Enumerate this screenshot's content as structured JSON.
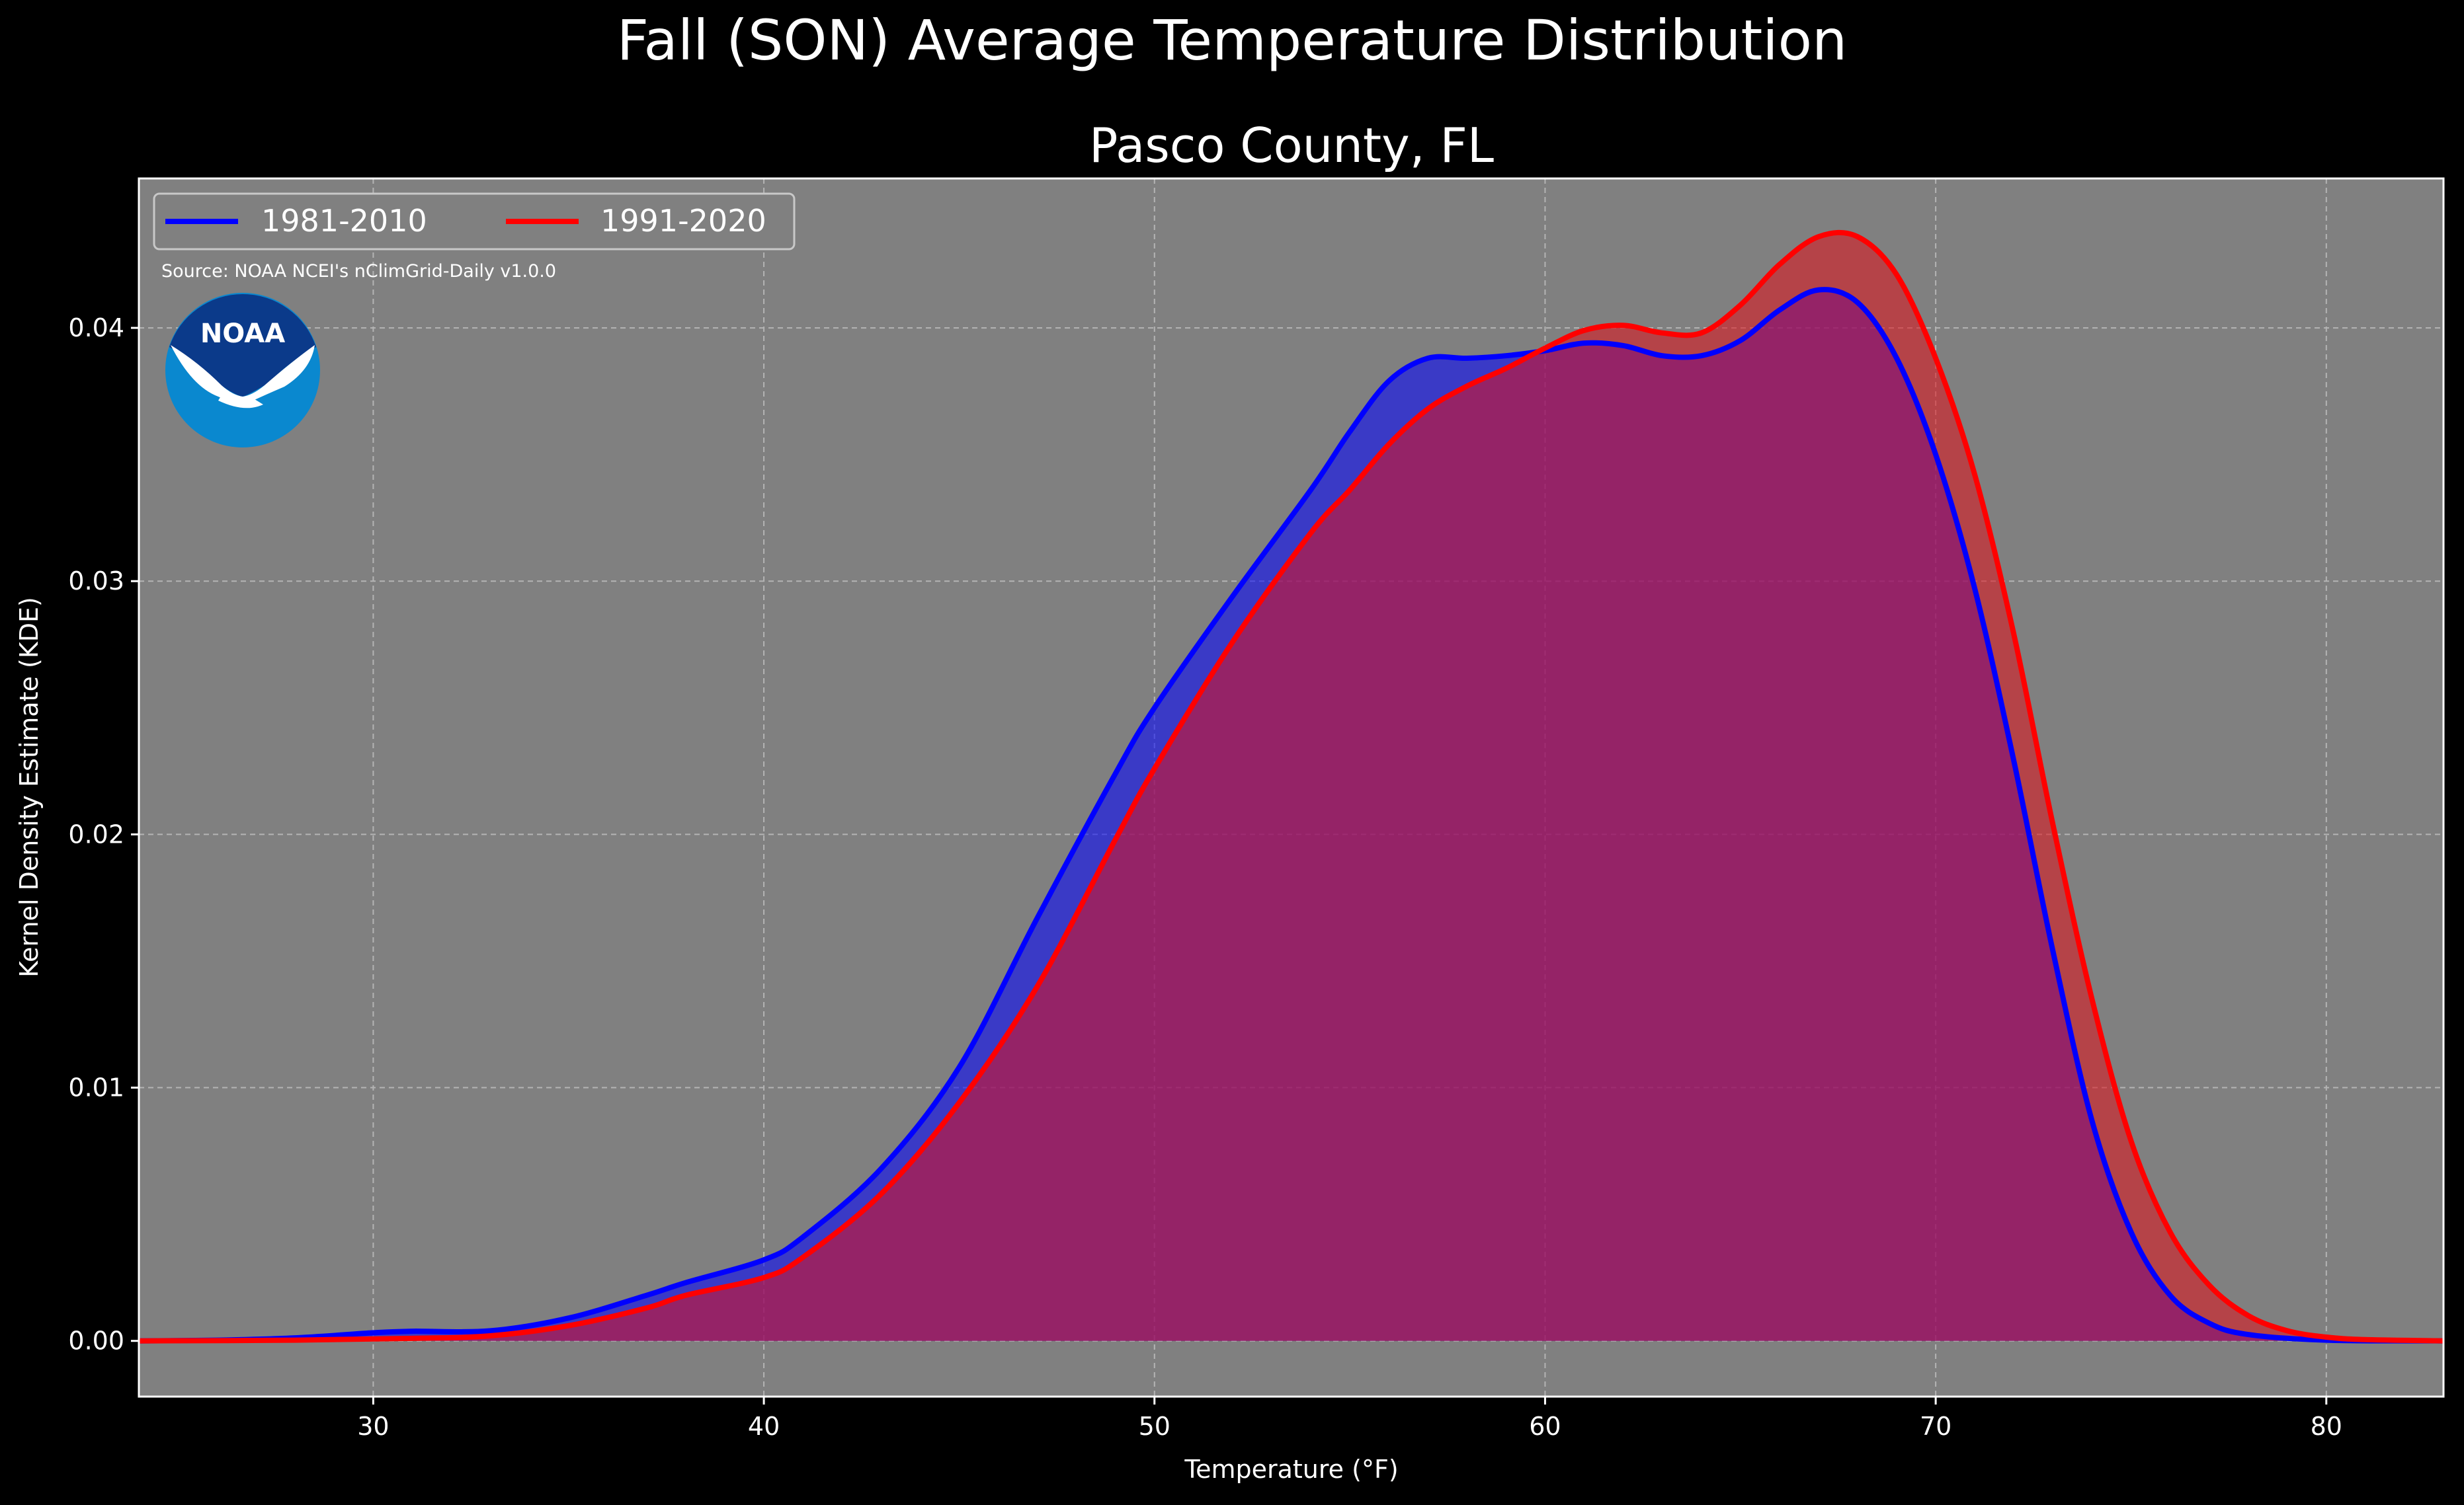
{
  "figure": {
    "suptitle": "Fall (SON) Average Temperature Distribution",
    "source_note": "Source: NOAA NCEI's nClimGrid-Daily v1.0.0",
    "logo_text": "NOAA",
    "colors": {
      "background": "#000000",
      "plot_background": "#808080",
      "series_1981": "#0000ff",
      "series_1991": "#ff0000",
      "logo_dark": "#0b3a8a",
      "logo_light": "#0a88cf"
    }
  },
  "chart_data": {
    "type": "area",
    "title": "Pasco County, FL",
    "xlabel": "Temperature ($^\\circ$F)",
    "xlabel_display": "Temperature (°F)",
    "ylabel": "Kernel Density Estimate (KDE)",
    "xlim": [
      24,
      83
    ],
    "ylim": [
      -0.0022,
      0.0459
    ],
    "xticks": [
      30,
      40,
      50,
      60,
      70,
      80
    ],
    "yticks": [
      0.0,
      0.01,
      0.02,
      0.03,
      0.04
    ],
    "ytick_labels": [
      "0.00",
      "0.01",
      "0.02",
      "0.03",
      "0.04"
    ],
    "grid": true,
    "legend_position": "upper-left",
    "series": [
      {
        "name": "1981-2010",
        "color": "#0000ff",
        "x": [
          24,
          26,
          28,
          30,
          31,
          33,
          35,
          37,
          38,
          40,
          41,
          43,
          45,
          47,
          49,
          50,
          52,
          54,
          55,
          56,
          57,
          58,
          59,
          60,
          61,
          62,
          63,
          64,
          65,
          66,
          67,
          68,
          69,
          70,
          71,
          72,
          73,
          74,
          75,
          76,
          77,
          78,
          80,
          83
        ],
        "y": [
          0.0,
          3e-05,
          0.00012,
          0.00032,
          0.00038,
          0.0004,
          0.0009,
          0.0018,
          0.0023,
          0.0032,
          0.0041,
          0.0068,
          0.0108,
          0.0167,
          0.0224,
          0.025,
          0.0294,
          0.0336,
          0.0359,
          0.0379,
          0.0388,
          0.0388,
          0.0389,
          0.0391,
          0.0394,
          0.0393,
          0.0389,
          0.0389,
          0.0395,
          0.0407,
          0.0415,
          0.041,
          0.0388,
          0.035,
          0.0297,
          0.0229,
          0.0154,
          0.0087,
          0.0043,
          0.0018,
          0.0007,
          0.00025,
          3e-05,
          0.0
        ]
      },
      {
        "name": "1991-2020",
        "color": "#ff0000",
        "x": [
          24,
          28,
          31,
          33,
          35,
          37,
          38,
          40,
          41,
          43,
          45,
          47,
          49,
          50,
          52,
          54,
          55,
          56,
          57,
          58,
          59,
          60,
          61,
          62,
          63,
          64,
          65,
          66,
          67,
          68,
          69,
          70,
          71,
          72,
          73,
          74,
          75,
          76,
          77,
          78,
          79,
          80,
          81,
          83
        ],
        "y": [
          0.0,
          3e-05,
          0.0001,
          0.0002,
          0.0006,
          0.0013,
          0.0018,
          0.0025,
          0.0033,
          0.0058,
          0.0094,
          0.014,
          0.0198,
          0.0226,
          0.0276,
          0.0319,
          0.0336,
          0.0354,
          0.0368,
          0.0377,
          0.0384,
          0.0392,
          0.0399,
          0.0401,
          0.0398,
          0.0398,
          0.0409,
          0.0425,
          0.0436,
          0.0436,
          0.0421,
          0.0388,
          0.0342,
          0.0279,
          0.0204,
          0.0135,
          0.0079,
          0.0043,
          0.0022,
          0.001,
          0.0004,
          0.00015,
          5e-05,
          0.0
        ]
      }
    ]
  }
}
